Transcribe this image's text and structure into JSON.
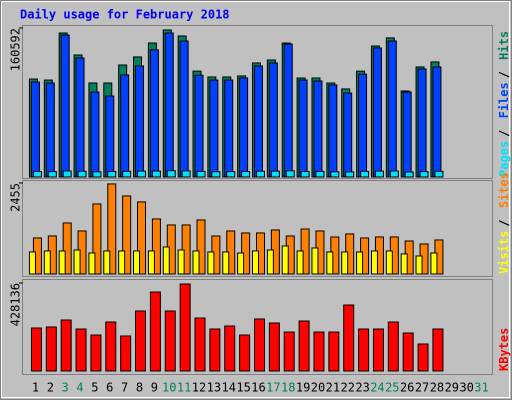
{
  "title": "Daily usage for February 2018",
  "legend_separator": "/",
  "chart_data": [
    {
      "type": "bar",
      "ylim": [
        0,
        160592
      ],
      "yticks": [
        160592
      ],
      "series": [
        {
          "name": "Hits",
          "color": "#00805c",
          "values": [
            105600,
            104500,
            155200,
            131500,
            101300,
            101300,
            120700,
            129400,
            144400,
            158500,
            152000,
            114100,
            107800,
            107800,
            108900,
            122900,
            126100,
            144400,
            106700,
            106700,
            101300,
            94900,
            114100,
            141200,
            149900,
            92700,
            118600,
            124000,
            null,
            null,
            null
          ]
        },
        {
          "name": "Files",
          "color": "#0040ff",
          "values": [
            102400,
            101300,
            153000,
            128300,
            91600,
            87300,
            110000,
            119700,
            137000,
            155200,
            146600,
            109700,
            104500,
            104500,
            106700,
            119700,
            122900,
            143300,
            104500,
            103500,
            99200,
            90500,
            110800,
            139100,
            146600,
            91600,
            116400,
            118600,
            null,
            null,
            null
          ]
        },
        {
          "name": "Pages",
          "color": "#00e0ff",
          "values": [
            6000,
            5800,
            6500,
            6200,
            5600,
            5900,
            6100,
            6300,
            6400,
            6800,
            6600,
            6000,
            5700,
            5800,
            5900,
            6200,
            6300,
            6700,
            5900,
            6000,
            5600,
            5500,
            6000,
            6400,
            6500,
            5400,
            5800,
            6100,
            null,
            null,
            null
          ]
        }
      ]
    },
    {
      "type": "bar",
      "ylim": [
        0,
        2455
      ],
      "yticks": [
        2455
      ],
      "series": [
        {
          "name": "Sites",
          "color": "#ff8000",
          "values": [
            972,
            1026,
            1377,
            1161,
            1890,
            2430,
            2106,
            1944,
            1485,
            1323,
            1323,
            1458,
            1026,
            1161,
            1107,
            1107,
            1188,
            1026,
            1215,
            1161,
            999,
            1080,
            972,
            999,
            999,
            891,
            810,
            918,
            null,
            null,
            null
          ]
        },
        {
          "name": "Visits",
          "color": "#ffff00",
          "values": [
            594,
            621,
            621,
            648,
            567,
            621,
            621,
            621,
            621,
            729,
            648,
            621,
            594,
            594,
            567,
            621,
            648,
            756,
            621,
            702,
            594,
            594,
            594,
            621,
            621,
            540,
            486,
            567,
            null,
            null,
            null
          ]
        }
      ]
    },
    {
      "type": "bar",
      "ylim": [
        0,
        428136
      ],
      "yticks": [
        428136
      ],
      "categories": [
        "1",
        "2",
        "3",
        "4",
        "5",
        "6",
        "7",
        "8",
        "9",
        "10",
        "11",
        "12",
        "13",
        "14",
        "15",
        "16",
        "17",
        "18",
        "19",
        "20",
        "21",
        "22",
        "23",
        "24",
        "25",
        "26",
        "27",
        "28",
        "29",
        "30",
        "31"
      ],
      "category_colors": [
        "#000000",
        "#000000",
        "#00805c",
        "#00805c",
        "#000000",
        "#000000",
        "#000000",
        "#000000",
        "#000000",
        "#00805c",
        "#00805c",
        "#000000",
        "#000000",
        "#000000",
        "#000000",
        "#000000",
        "#00805c",
        "#00805c",
        "#000000",
        "#000000",
        "#000000",
        "#000000",
        "#000000",
        "#00805c",
        "#00805c",
        "#000000",
        "#000000",
        "#000000",
        "#000000",
        "#000000",
        "#00805c"
      ],
      "series": [
        {
          "name": "KBytes",
          "color": "#ff0000",
          "values": [
            209200,
            214100,
            248100,
            204300,
            175100,
            238400,
            170300,
            291900,
            384300,
            291900,
            423300,
            257800,
            204300,
            218900,
            175100,
            253000,
            233500,
            189700,
            243300,
            189700,
            189700,
            321100,
            204300,
            204300,
            238400,
            184900,
            131400,
            204300,
            null,
            null,
            null
          ]
        }
      ]
    }
  ]
}
